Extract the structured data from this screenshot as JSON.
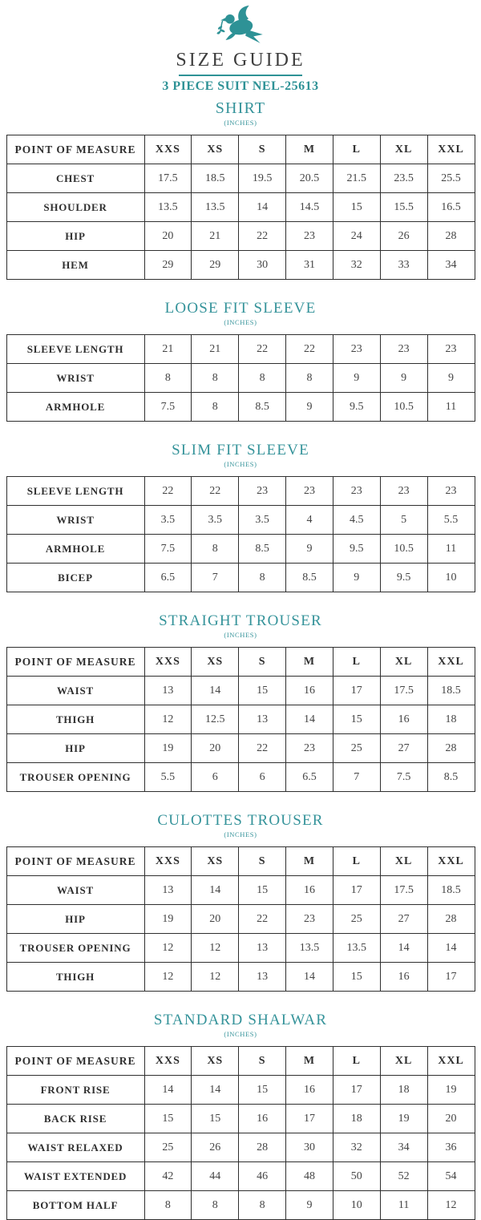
{
  "accent_color": "#2E9296",
  "header": {
    "logo_icon": "dove-with-olive-branch-icon",
    "title": "SIZE GUIDE",
    "subtitle": "3 PIECE SUIT NEL-25613"
  },
  "size_columns": [
    "XXS",
    "XS",
    "S",
    "M",
    "L",
    "XL",
    "XXL"
  ],
  "point_of_measure_label": "POINT OF MEASURE",
  "sections": [
    {
      "title": "SHIRT",
      "unit": "(INCHES)",
      "has_header_row": true,
      "rows": [
        {
          "label": "CHEST",
          "values": [
            "17.5",
            "18.5",
            "19.5",
            "20.5",
            "21.5",
            "23.5",
            "25.5"
          ]
        },
        {
          "label": "SHOULDER",
          "values": [
            "13.5",
            "13.5",
            "14",
            "14.5",
            "15",
            "15.5",
            "16.5"
          ]
        },
        {
          "label": "HIP",
          "values": [
            "20",
            "21",
            "22",
            "23",
            "24",
            "26",
            "28"
          ]
        },
        {
          "label": "HEM",
          "values": [
            "29",
            "29",
            "30",
            "31",
            "32",
            "33",
            "34"
          ]
        }
      ]
    },
    {
      "title": "LOOSE FIT SLEEVE",
      "unit": "(INCHES)",
      "has_header_row": false,
      "rows": [
        {
          "label": "SLEEVE LENGTH",
          "values": [
            "21",
            "21",
            "22",
            "22",
            "23",
            "23",
            "23"
          ]
        },
        {
          "label": "WRIST",
          "values": [
            "8",
            "8",
            "8",
            "8",
            "9",
            "9",
            "9"
          ]
        },
        {
          "label": "ARMHOLE",
          "values": [
            "7.5",
            "8",
            "8.5",
            "9",
            "9.5",
            "10.5",
            "11"
          ]
        }
      ]
    },
    {
      "title": "SLIM FIT SLEEVE",
      "unit": "(INCHES)",
      "has_header_row": false,
      "rows": [
        {
          "label": "SLEEVE LENGTH",
          "values": [
            "22",
            "22",
            "23",
            "23",
            "23",
            "23",
            "23"
          ]
        },
        {
          "label": "WRIST",
          "values": [
            "3.5",
            "3.5",
            "3.5",
            "4",
            "4.5",
            "5",
            "5.5"
          ]
        },
        {
          "label": "ARMHOLE",
          "values": [
            "7.5",
            "8",
            "8.5",
            "9",
            "9.5",
            "10.5",
            "11"
          ]
        },
        {
          "label": "BICEP",
          "values": [
            "6.5",
            "7",
            "8",
            "8.5",
            "9",
            "9.5",
            "10"
          ]
        }
      ]
    },
    {
      "title": "STRAIGHT TROUSER",
      "unit": "(INCHES)",
      "has_header_row": true,
      "rows": [
        {
          "label": "WAIST",
          "values": [
            "13",
            "14",
            "15",
            "16",
            "17",
            "17.5",
            "18.5"
          ]
        },
        {
          "label": "THIGH",
          "values": [
            "12",
            "12.5",
            "13",
            "14",
            "15",
            "16",
            "18"
          ]
        },
        {
          "label": "HIP",
          "values": [
            "19",
            "20",
            "22",
            "23",
            "25",
            "27",
            "28"
          ]
        },
        {
          "label": "TROUSER OPENING",
          "values": [
            "5.5",
            "6",
            "6",
            "6.5",
            "7",
            "7.5",
            "8.5"
          ]
        }
      ]
    },
    {
      "title": "CULOTTES TROUSER",
      "unit": "(INCHES)",
      "has_header_row": true,
      "rows": [
        {
          "label": "WAIST",
          "values": [
            "13",
            "14",
            "15",
            "16",
            "17",
            "17.5",
            "18.5"
          ]
        },
        {
          "label": "HIP",
          "values": [
            "19",
            "20",
            "22",
            "23",
            "25",
            "27",
            "28"
          ]
        },
        {
          "label": "TROUSER OPENING",
          "values": [
            "12",
            "12",
            "13",
            "13.5",
            "13.5",
            "14",
            "14"
          ]
        },
        {
          "label": "THIGH",
          "values": [
            "12",
            "12",
            "13",
            "14",
            "15",
            "16",
            "17"
          ]
        }
      ]
    },
    {
      "title": "STANDARD SHALWAR",
      "unit": "(INCHES)",
      "has_header_row": true,
      "rows": [
        {
          "label": "FRONT RISE",
          "values": [
            "14",
            "14",
            "15",
            "16",
            "17",
            "18",
            "19"
          ]
        },
        {
          "label": "BACK RISE",
          "values": [
            "15",
            "15",
            "16",
            "17",
            "18",
            "19",
            "20"
          ]
        },
        {
          "label": "WAIST RELAXED",
          "values": [
            "25",
            "26",
            "28",
            "30",
            "32",
            "34",
            "36"
          ]
        },
        {
          "label": "WAIST EXTENDED",
          "values": [
            "42",
            "44",
            "46",
            "48",
            "50",
            "52",
            "54"
          ]
        },
        {
          "label": "BOTTOM HALF",
          "values": [
            "8",
            "8",
            "8",
            "9",
            "10",
            "11",
            "12"
          ]
        }
      ]
    }
  ]
}
